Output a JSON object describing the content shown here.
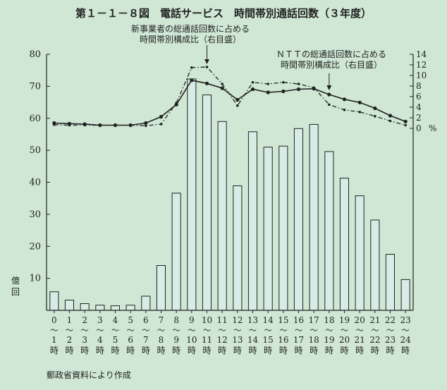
{
  "chart_data": {
    "type": "bar",
    "title": "第１－１－８図　電話サービス　時間帯別通話回数（３年度）",
    "source": "郵政省資料により作成",
    "left_axis": {
      "unit_label": "億回",
      "ylim": [
        0,
        80
      ],
      "ticks": [
        0,
        10,
        20,
        30,
        40,
        50,
        60,
        70,
        80
      ]
    },
    "right_axis": {
      "unit_label": "%",
      "ylim": [
        0,
        14
      ],
      "ticks": [
        0,
        2,
        4,
        6,
        8,
        10,
        12,
        14
      ]
    },
    "categories": [
      {
        "start": "0",
        "end": "1",
        "suffix": "時"
      },
      {
        "start": "1",
        "end": "2",
        "suffix": "時"
      },
      {
        "start": "2",
        "end": "3",
        "suffix": "時"
      },
      {
        "start": "3",
        "end": "4",
        "suffix": "時"
      },
      {
        "start": "4",
        "end": "5",
        "suffix": "時"
      },
      {
        "start": "5",
        "end": "6",
        "suffix": "時"
      },
      {
        "start": "6",
        "end": "7",
        "suffix": "時"
      },
      {
        "start": "7",
        "end": "8",
        "suffix": "時"
      },
      {
        "start": "8",
        "end": "9",
        "suffix": "時"
      },
      {
        "start": "9",
        "end": "10",
        "suffix": "時"
      },
      {
        "start": "10",
        "end": "11",
        "suffix": "時"
      },
      {
        "start": "11",
        "end": "12",
        "suffix": "時"
      },
      {
        "start": "12",
        "end": "13",
        "suffix": "時"
      },
      {
        "start": "13",
        "end": "14",
        "suffix": "時"
      },
      {
        "start": "14",
        "end": "15",
        "suffix": "時"
      },
      {
        "start": "15",
        "end": "16",
        "suffix": "時"
      },
      {
        "start": "16",
        "end": "17",
        "suffix": "時"
      },
      {
        "start": "17",
        "end": "18",
        "suffix": "時"
      },
      {
        "start": "18",
        "end": "19",
        "suffix": "時"
      },
      {
        "start": "19",
        "end": "20",
        "suffix": "時"
      },
      {
        "start": "20",
        "end": "21",
        "suffix": "時"
      },
      {
        "start": "21",
        "end": "22",
        "suffix": "時"
      },
      {
        "start": "22",
        "end": "23",
        "suffix": "時"
      },
      {
        "start": "23",
        "end": "24",
        "suffix": "時"
      }
    ],
    "bars": {
      "axis": "left",
      "values": [
        5.8,
        3.2,
        2.1,
        1.6,
        1.4,
        1.6,
        4.4,
        14.0,
        36.6,
        72.3,
        67.3,
        59.0,
        38.9,
        55.8,
        51.0,
        51.3,
        56.8,
        58.1,
        49.6,
        41.3,
        35.8,
        28.2,
        17.5,
        9.6
      ]
    },
    "series": [
      {
        "name": "ＮＴＴの総通話回数に占める時間帯別構成比（右目盛）",
        "axis": "right",
        "style": "solid",
        "values": [
          1.0,
          0.9,
          0.8,
          0.6,
          0.6,
          0.6,
          1.0,
          2.2,
          4.5,
          9.1,
          8.5,
          7.6,
          5.4,
          7.4,
          6.8,
          7.0,
          7.4,
          7.5,
          6.4,
          5.5,
          4.9,
          3.8,
          2.4,
          1.3
        ]
      },
      {
        "name": "新事業者の総通話回数に占める時間帯別構成比（右目盛）",
        "axis": "right",
        "style": "dash-dot",
        "values": [
          0.7,
          0.6,
          0.6,
          0.6,
          0.6,
          0.6,
          0.5,
          0.8,
          4.8,
          11.5,
          11.6,
          8.4,
          4.3,
          8.7,
          8.4,
          8.7,
          8.4,
          7.7,
          4.5,
          3.5,
          3.1,
          2.3,
          1.4,
          0.6
        ]
      }
    ],
    "annotations": [
      {
        "lines": [
          "新事業者の総通話回数に占める",
          "時間帯別構成比（右目盛）"
        ],
        "target_series": 1
      },
      {
        "lines": [
          "ＮＴＴの総通話回数に占める",
          "時間帯別構成比（右目盛）"
        ],
        "target_series": 0
      }
    ],
    "grid": false,
    "legend": "none",
    "colors": {
      "bar_fill": "#d6ece4",
      "ink": "#222222",
      "background": "#cfe7d4"
    }
  }
}
